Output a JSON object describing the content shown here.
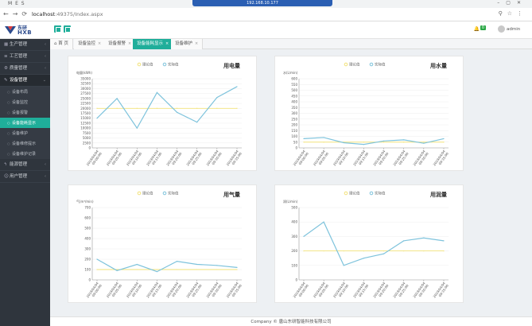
{
  "browser": {
    "tab_title": "M E S",
    "remote_title": "192.168.10.177",
    "url_host": "localhost",
    "url_path": ":49375/Index.aspx"
  },
  "app": {
    "logo_top": "东研",
    "logo_bottom": "HXB",
    "notif_count": "0",
    "user_name": "admin"
  },
  "sidebar": {
    "items": [
      {
        "label": "生产管理",
        "icon": "grid-icon"
      },
      {
        "label": "工艺管理",
        "icon": "list-icon"
      },
      {
        "label": "质量管理",
        "icon": "gear-icon"
      },
      {
        "label": "设备管理",
        "icon": "wrench-icon",
        "open": true
      },
      {
        "label": "能源管理",
        "icon": "bolt-icon"
      },
      {
        "label": "用户管理",
        "icon": "user-icon"
      }
    ],
    "sub_items": [
      "设备布局",
      "设备监控",
      "设备报警",
      "设备能耗显示",
      "设备维护",
      "设备维修提示",
      "设备维护记录"
    ]
  },
  "tabs": [
    {
      "label": "首 页"
    },
    {
      "label": "设备监控"
    },
    {
      "label": "设备报警"
    },
    {
      "label": "设备能耗显示"
    },
    {
      "label": "设备维护"
    }
  ],
  "footer": "Company © 唐山东研智能科技有限公司",
  "chart_data": [
    {
      "type": "line",
      "title": "用电量",
      "ylabel": "电量(kWh)",
      "ylim": [
        0,
        35000
      ],
      "yticks": [
        0,
        2500,
        5000,
        7500,
        10000,
        12500,
        15000,
        17500,
        20000,
        22500,
        25000,
        27500,
        30000,
        32500,
        35000
      ],
      "categories": [
        "2019/04/04 09:00:00",
        "2019/04/04 09:05:00",
        "2019/04/04 09:10:00",
        "2019/04/04 09:15:00",
        "2019/04/04 09:20:00",
        "2019/04/04 09:25:00",
        "2019/04/04 09:30:00",
        "2019/04/04 09:35:00"
      ],
      "series": [
        {
          "name": "理论值",
          "color": "#f2e27a",
          "values": [
            20000,
            20000,
            20000,
            20000,
            20000,
            20000,
            20000,
            20000
          ]
        },
        {
          "name": "实际值",
          "color": "#7ec3dc",
          "values": [
            15000,
            25000,
            10000,
            28000,
            18000,
            13000,
            25500,
            31000
          ]
        }
      ]
    },
    {
      "type": "line",
      "title": "用水量",
      "ylabel": "水(L/min)",
      "ylim": [
        0,
        600
      ],
      "yticks": [
        0,
        50,
        100,
        150,
        200,
        250,
        300,
        350,
        400,
        450,
        500,
        550,
        600
      ],
      "categories": [
        "2019/04/04 09:00:00",
        "2019/04/04 09:05:00",
        "2019/04/04 09:10:00",
        "2019/04/04 09:15:00",
        "2019/04/04 09:20:00",
        "2019/04/04 09:25:00",
        "2019/04/04 09:30:00",
        "2019/04/04 09:35:00"
      ],
      "series": [
        {
          "name": "理论值",
          "color": "#f2e27a",
          "values": [
            50,
            50,
            50,
            50,
            50,
            50,
            50,
            50
          ]
        },
        {
          "name": "实际值",
          "color": "#7ec3dc",
          "values": [
            80,
            90,
            45,
            30,
            60,
            70,
            40,
            80
          ]
        }
      ]
    },
    {
      "type": "line",
      "title": "用气量",
      "ylabel": "气(m³/min)",
      "ylim": [
        0,
        700
      ],
      "yticks": [
        0,
        100,
        200,
        300,
        400,
        500,
        600,
        700
      ],
      "categories": [
        "2019/04/04 09:00:00",
        "2019/04/04 09:05:00",
        "2019/04/04 09:10:00",
        "2019/04/04 09:15:00",
        "2019/04/04 09:20:00",
        "2019/04/04 09:25:00",
        "2019/04/04 09:30:00",
        "2019/04/04 09:35:00"
      ],
      "series": [
        {
          "name": "理论值",
          "color": "#f2e27a",
          "values": [
            100,
            100,
            100,
            100,
            100,
            100,
            100,
            100
          ]
        },
        {
          "name": "实际值",
          "color": "#7ec3dc",
          "values": [
            200,
            90,
            150,
            80,
            180,
            150,
            140,
            120
          ]
        }
      ]
    },
    {
      "type": "line",
      "title": "用润量",
      "ylabel": "润(L/min)",
      "ylim": [
        0,
        500
      ],
      "yticks": [
        0,
        100,
        200,
        300,
        400,
        500
      ],
      "categories": [
        "2019/04/04 09:00:00",
        "2019/04/04 09:05:00",
        "2019/04/04 09:10:00",
        "2019/04/04 09:15:00",
        "2019/04/04 09:20:00",
        "2019/04/04 09:25:00",
        "2019/04/04 09:30:00",
        "2019/04/04 09:35:00"
      ],
      "series": [
        {
          "name": "理论值",
          "color": "#f2e27a",
          "values": [
            200,
            200,
            200,
            200,
            200,
            200,
            200,
            200
          ]
        },
        {
          "name": "实际值",
          "color": "#7ec3dc",
          "values": [
            300,
            400,
            100,
            150,
            180,
            270,
            290,
            270
          ]
        }
      ]
    }
  ]
}
